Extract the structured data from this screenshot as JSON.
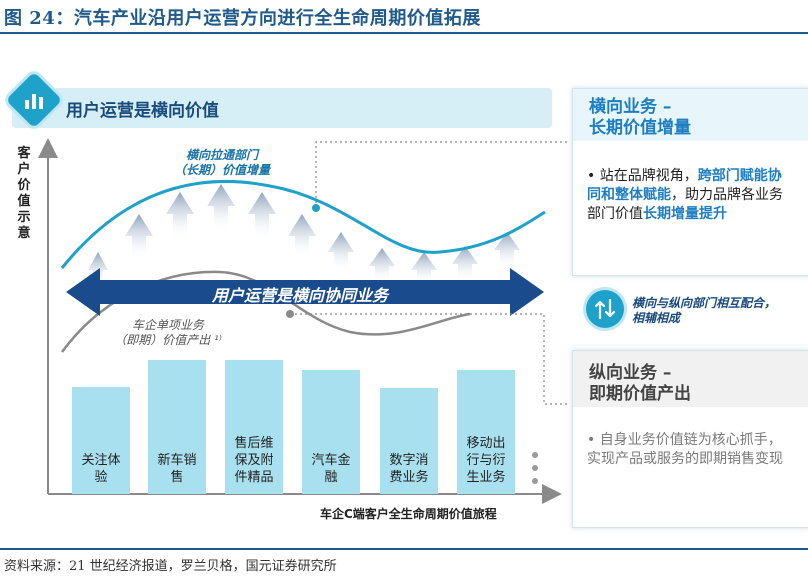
{
  "figure": {
    "title": "图 24：汽车产业沿用户运营方向进行全生命周期价值拓展",
    "source": "资料来源：21 世纪经济报道，罗兰贝格，国元证券研究所"
  },
  "banner": {
    "text": "用户运营是横向价值"
  },
  "axes": {
    "y_label": "客户价值示意",
    "x_label": "车企C端客户全生命周期价值旅程"
  },
  "curves": {
    "top_label_line1": "横向拉通部门",
    "top_label_line2": "（长期）价值增量",
    "bottom_label_line1": "车企单项业务",
    "bottom_label_line2": "（即期）价值产出 ¹⁾"
  },
  "arrow": {
    "text": "用户运营是横向协同业务"
  },
  "bars": [
    {
      "label": "关注体\n验"
    },
    {
      "label": "新车销\n售"
    },
    {
      "label": "售后维\n保及附\n件精品"
    },
    {
      "label": "汽车金\n融"
    },
    {
      "label": "数字消\n费业务"
    },
    {
      "label": "移动出\n行与衍\n生业务"
    }
  ],
  "right_top": {
    "title_line1": "横向业务 –",
    "title_line2": "长期价值增量",
    "body_part1": "站在品牌视角，",
    "body_hl1": "跨部门赋能协同和整体赋能",
    "body_part2": "，助力品牌各业务部门价值",
    "body_hl2": "长期增量提升"
  },
  "middle": {
    "line1": "横向与纵向部门相互配合，",
    "line2": "相辅相成"
  },
  "right_bottom": {
    "title_line1": "纵向业务 –",
    "title_line2": "即期价值产出",
    "body": "自身业务价值链为核心抓手，实现产品或服务的即期销售变现"
  },
  "colors": {
    "title_blue": "#1f5a8a",
    "accent_cyan": "#1fa2c9",
    "arrow_navy": "#1a4b8c",
    "bar_fill": "#a9e0ef",
    "highlight_blue": "#1e7ec2",
    "grey_text": "#7a7a7a"
  }
}
